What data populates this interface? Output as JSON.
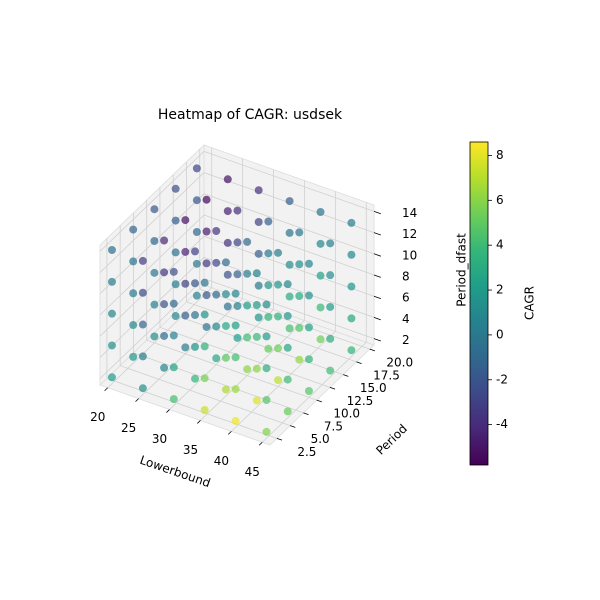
{
  "chart_data": {
    "type": "scatter3d",
    "title": "Heatmap of CAGR: usdsek",
    "xlabel": "Lowerbound",
    "ylabel": "Period",
    "zlabel": "Period_dfast",
    "clabel": "CAGR",
    "x": [
      20,
      25,
      30,
      35,
      40,
      45
    ],
    "y": [
      2,
      6,
      10,
      14,
      18
    ],
    "z": [
      2,
      5,
      8,
      11,
      14
    ],
    "values": [
      [
        [
          2.1,
          1.5,
          0.8,
          0.2,
          -0.5
        ],
        [
          1.8,
          1.0,
          0.3,
          -0.4,
          -1.2
        ],
        [
          1.2,
          0.6,
          -0.2,
          -1.0,
          -1.8
        ],
        [
          0.9,
          0.2,
          -0.6,
          -1.5,
          -2.3
        ],
        [
          0.5,
          -0.1,
          -1.0,
          -1.9,
          -2.7
        ]
      ],
      [
        [
          1.5,
          0.2,
          -1.3,
          -2.6,
          -3.4
        ],
        [
          0.8,
          -0.8,
          -2.2,
          -3.5,
          -4.3
        ],
        [
          0.3,
          -1.5,
          -3.1,
          -4.4,
          -5.2
        ],
        [
          -0.2,
          -1.9,
          -3.5,
          -4.8,
          -5.6
        ],
        [
          -0.6,
          -2.2,
          -3.7,
          -4.6,
          -5.1
        ]
      ],
      [
        [
          4.2,
          2.5,
          0.6,
          -1.1,
          -2.3
        ],
        [
          3.6,
          1.6,
          -0.4,
          -2.0,
          -3.1
        ],
        [
          2.8,
          0.9,
          -1.0,
          -2.6,
          -3.6
        ],
        [
          2.2,
          0.4,
          -1.4,
          -2.8,
          -3.9
        ],
        [
          1.6,
          0.0,
          -1.6,
          -3.0,
          -3.8
        ]
      ],
      [
        [
          7.4,
          5.6,
          3.5,
          1.5,
          -0.2
        ],
        [
          6.8,
          4.9,
          2.7,
          0.9,
          -0.8
        ],
        [
          6.0,
          4.2,
          2.1,
          0.4,
          -1.1
        ],
        [
          5.1,
          3.5,
          1.6,
          0.0,
          -1.4
        ],
        [
          4.3,
          2.9,
          1.2,
          -0.3,
          -1.5
        ]
      ],
      [
        [
          8.3,
          6.4,
          4.2,
          2.3,
          0.8
        ],
        [
          7.9,
          6.0,
          3.9,
          2.1,
          0.5
        ],
        [
          7.1,
          5.4,
          3.4,
          1.7,
          0.2
        ],
        [
          6.2,
          4.6,
          2.9,
          1.3,
          0.0
        ],
        [
          5.4,
          3.9,
          2.4,
          1.0,
          -0.2
        ]
      ],
      [
        [
          5.8,
          4.6,
          3.2,
          2.0,
          1.1
        ],
        [
          5.2,
          4.1,
          2.8,
          1.7,
          0.9
        ],
        [
          4.7,
          3.6,
          2.5,
          1.4,
          0.7
        ],
        [
          4.1,
          3.1,
          2.1,
          1.2,
          0.5
        ],
        [
          3.6,
          2.7,
          1.8,
          0.9,
          0.3
        ]
      ]
    ],
    "xlim": [
      18.75,
      46.25
    ],
    "xticks": [
      20,
      25,
      30,
      35,
      40,
      45
    ],
    "ylim": [
      1.2,
      20.8
    ],
    "yticks": [
      {
        "value": 2.5,
        "label": "2.5"
      },
      {
        "value": 5,
        "label": "5.0"
      },
      {
        "value": 7.5,
        "label": "7.5"
      },
      {
        "value": 10,
        "label": "10.0"
      },
      {
        "value": 12.5,
        "label": "12.5"
      },
      {
        "value": 15,
        "label": "15.0"
      },
      {
        "value": 17.5,
        "label": "17.5"
      },
      {
        "value": 20,
        "label": "20.0"
      }
    ],
    "zlim": [
      1.4,
      14.6
    ],
    "zticks": [
      2,
      4,
      6,
      8,
      10,
      12,
      14
    ],
    "clim": [
      -5.8,
      8.6
    ],
    "cticks": [
      -4,
      -2,
      0,
      2,
      4,
      6,
      8
    ],
    "colormap": "viridis",
    "grid": true
  }
}
